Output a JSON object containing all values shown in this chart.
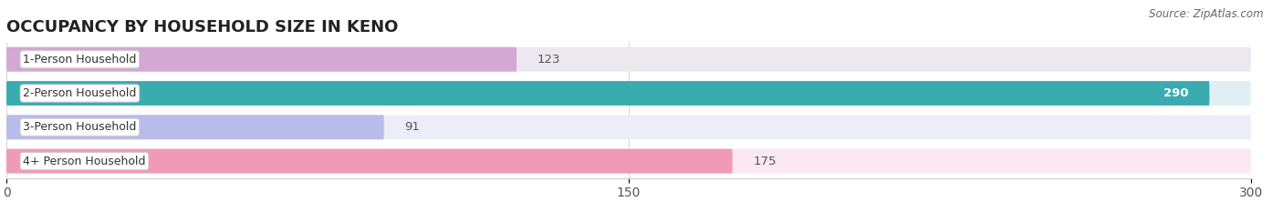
{
  "title": "OCCUPANCY BY HOUSEHOLD SIZE IN KENO",
  "source": "Source: ZipAtlas.com",
  "categories": [
    "1-Person Household",
    "2-Person Household",
    "3-Person Household",
    "4+ Person Household"
  ],
  "values": [
    123,
    290,
    91,
    175
  ],
  "bar_colors": [
    "#d4a8d4",
    "#3aacb0",
    "#b8bce8",
    "#f09ab8"
  ],
  "bar_bg_colors": [
    "#ede8f0",
    "#e0f0f2",
    "#ecedf7",
    "#fce8f2"
  ],
  "xlim": [
    0,
    300
  ],
  "xticks": [
    0,
    150,
    300
  ],
  "label_inside_bar": [
    false,
    true,
    false,
    false
  ],
  "title_fontsize": 13,
  "tick_fontsize": 10,
  "bar_label_fontsize": 9.5,
  "category_fontsize": 9
}
